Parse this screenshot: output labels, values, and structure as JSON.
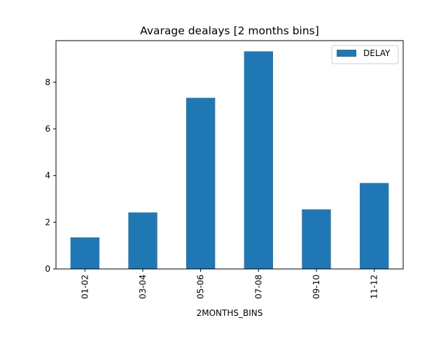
{
  "chart_data": {
    "type": "bar",
    "title": "Avarage dealays [2 months bins]",
    "xlabel": "2MONTHS_BINS",
    "ylabel": "",
    "categories": [
      "01-02",
      "03-04",
      "05-06",
      "07-08",
      "09-10",
      "11-12"
    ],
    "series": [
      {
        "name": "DELAY",
        "values": [
          1.35,
          2.42,
          7.33,
          9.32,
          2.55,
          3.68
        ]
      }
    ],
    "ylim": [
      0,
      9.78
    ],
    "yticks": [
      0,
      2,
      4,
      6,
      8
    ],
    "grid": false,
    "legend_position": "top-right",
    "bar_color": "#1f77b4"
  }
}
